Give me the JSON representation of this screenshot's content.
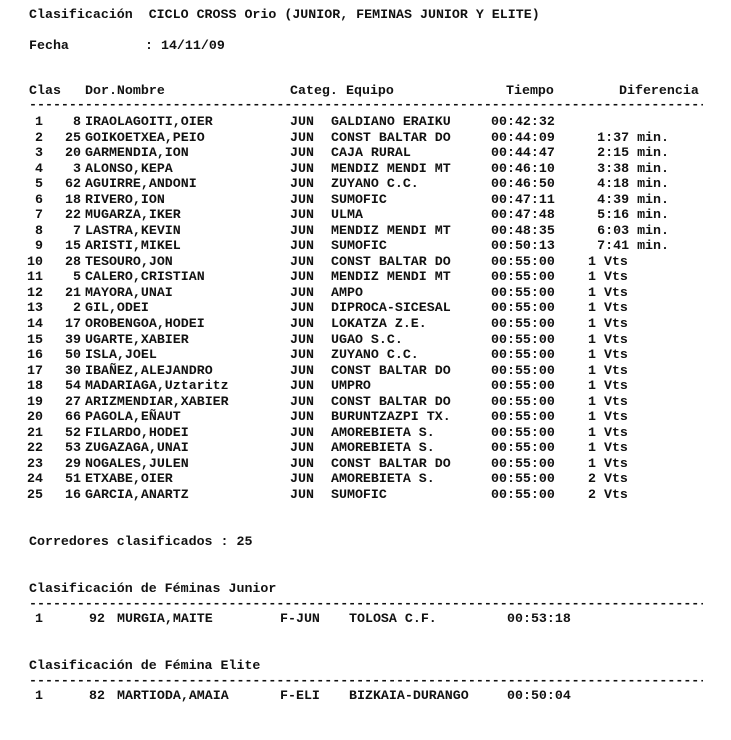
{
  "title": "Clasificación  CICLO CROSS Orio (JUNIOR, FEMINAS JUNIOR Y ELITE)",
  "fecha_label": "Fecha",
  "fecha_value": ": 14/11/09",
  "headers": {
    "clas": "Clas",
    "dor_nombre": "Dor.Nombre",
    "categ": "Categ.",
    "equipo": "Equipo",
    "tiempo": "Tiempo",
    "diferencia": "Diferencia"
  },
  "rows": [
    {
      "clas": "1",
      "dor": "8",
      "nombre": "IRAOLAGOITI,OIER",
      "categ": "JUN",
      "equipo": "GALDIANO ERAIKU",
      "tiempo": "00:42:32",
      "dif": ""
    },
    {
      "clas": "2",
      "dor": "25",
      "nombre": "GOIKOETXEA,PEIO",
      "categ": "JUN",
      "equipo": "CONST BALTAR DO",
      "tiempo": "00:44:09",
      "dif": "1:37 min."
    },
    {
      "clas": "3",
      "dor": "20",
      "nombre": "GARMENDIA,ION",
      "categ": "JUN",
      "equipo": "CAJA RURAL",
      "tiempo": "00:44:47",
      "dif": "2:15 min."
    },
    {
      "clas": "4",
      "dor": "3",
      "nombre": "ALONSO,KEPA",
      "categ": "JUN",
      "equipo": "MENDIZ MENDI MT",
      "tiempo": "00:46:10",
      "dif": "3:38 min."
    },
    {
      "clas": "5",
      "dor": "62",
      "nombre": "AGUIRRE,ANDONI",
      "categ": "JUN",
      "equipo": "ZUYANO C.C.",
      "tiempo": "00:46:50",
      "dif": "4:18 min."
    },
    {
      "clas": "6",
      "dor": "18",
      "nombre": "RIVERO,ION",
      "categ": "JUN",
      "equipo": "SUMOFIC",
      "tiempo": "00:47:11",
      "dif": "4:39 min."
    },
    {
      "clas": "7",
      "dor": "22",
      "nombre": "MUGARZA,IKER",
      "categ": "JUN",
      "equipo": "ULMA",
      "tiempo": "00:47:48",
      "dif": "5:16 min."
    },
    {
      "clas": "8",
      "dor": "7",
      "nombre": "LASTRA,KEVIN",
      "categ": "JUN",
      "equipo": "MENDIZ MENDI MT",
      "tiempo": "00:48:35",
      "dif": "6:03 min."
    },
    {
      "clas": "9",
      "dor": "15",
      "nombre": "ARISTI,MIKEL",
      "categ": "JUN",
      "equipo": "SUMOFIC",
      "tiempo": "00:50:13",
      "dif": "7:41 min."
    },
    {
      "clas": "10",
      "dor": "28",
      "nombre": "TESOURO,JON",
      "categ": "JUN",
      "equipo": "CONST BALTAR DO",
      "tiempo": "00:55:00",
      "dif": "1 Vts"
    },
    {
      "clas": "11",
      "dor": "5",
      "nombre": "CALERO,CRISTIAN",
      "categ": "JUN",
      "equipo": "MENDIZ MENDI MT",
      "tiempo": "00:55:00",
      "dif": "1 Vts"
    },
    {
      "clas": "12",
      "dor": "21",
      "nombre": "MAYORA,UNAI",
      "categ": "JUN",
      "equipo": "AMPO",
      "tiempo": "00:55:00",
      "dif": "1 Vts"
    },
    {
      "clas": "13",
      "dor": "2",
      "nombre": "GIL,ODEI",
      "categ": "JUN",
      "equipo": "DIPROCA-SICESAL",
      "tiempo": "00:55:00",
      "dif": "1 Vts"
    },
    {
      "clas": "14",
      "dor": "17",
      "nombre": "OROBENGOA,HODEI",
      "categ": "JUN",
      "equipo": "LOKATZA Z.E.",
      "tiempo": "00:55:00",
      "dif": "1 Vts"
    },
    {
      "clas": "15",
      "dor": "39",
      "nombre": "UGARTE,XABIER",
      "categ": "JUN",
      "equipo": "UGAO S.C.",
      "tiempo": "00:55:00",
      "dif": "1 Vts"
    },
    {
      "clas": "16",
      "dor": "50",
      "nombre": "ISLA,JOEL",
      "categ": "JUN",
      "equipo": "ZUYANO C.C.",
      "tiempo": "00:55:00",
      "dif": "1 Vts"
    },
    {
      "clas": "17",
      "dor": "30",
      "nombre": "IBAÑEZ,ALEJANDRO",
      "categ": "JUN",
      "equipo": "CONST BALTAR DO",
      "tiempo": "00:55:00",
      "dif": "1 Vts"
    },
    {
      "clas": "18",
      "dor": "54",
      "nombre": "MADARIAGA,Uztaritz",
      "categ": "JUN",
      "equipo": "UMPRO",
      "tiempo": "00:55:00",
      "dif": "1 Vts"
    },
    {
      "clas": "19",
      "dor": "27",
      "nombre": "ARIZMENDIAR,XABIER",
      "categ": "JUN",
      "equipo": "CONST BALTAR DO",
      "tiempo": "00:55:00",
      "dif": "1 Vts"
    },
    {
      "clas": "20",
      "dor": "66",
      "nombre": "PAGOLA,EÑAUT",
      "categ": "JUN",
      "equipo": "BURUNTZAZPI TX.",
      "tiempo": "00:55:00",
      "dif": "1 Vts"
    },
    {
      "clas": "21",
      "dor": "52",
      "nombre": "FILARDO,HODEI",
      "categ": "JUN",
      "equipo": "AMOREBIETA S.",
      "tiempo": "00:55:00",
      "dif": "1 Vts"
    },
    {
      "clas": "22",
      "dor": "53",
      "nombre": "ZUGAZAGA,UNAI",
      "categ": "JUN",
      "equipo": "AMOREBIETA S.",
      "tiempo": "00:55:00",
      "dif": "1 Vts"
    },
    {
      "clas": "23",
      "dor": "29",
      "nombre": "NOGALES,JULEN",
      "categ": "JUN",
      "equipo": "CONST BALTAR DO",
      "tiempo": "00:55:00",
      "dif": "1 Vts"
    },
    {
      "clas": "24",
      "dor": "51",
      "nombre": "ETXABE,OIER",
      "categ": "JUN",
      "equipo": "AMOREBIETA S.",
      "tiempo": "00:55:00",
      "dif": "2 Vts"
    },
    {
      "clas": "25",
      "dor": "16",
      "nombre": "GARCIA,ANARTZ",
      "categ": "JUN",
      "equipo": "SUMOFIC",
      "tiempo": "00:55:00",
      "dif": "2 Vts"
    }
  ],
  "summary": "Corredores clasificados : 25",
  "sections": [
    {
      "title": "Clasificación de Féminas Junior",
      "row": {
        "clas": "1",
        "dor": "92",
        "nombre": "MURGIA,MAITE",
        "categ": "F-JUN",
        "equipo": "TOLOSA C.F.",
        "tiempo": "00:53:18"
      }
    },
    {
      "title": "Clasificación de Fémina Elite",
      "row": {
        "clas": "1",
        "dor": "82",
        "nombre": "MARTIODA,AMAIA",
        "categ": "F-ELI",
        "equipo": "BIZKAIA-DURANGO",
        "tiempo": "00:50:04"
      }
    }
  ]
}
